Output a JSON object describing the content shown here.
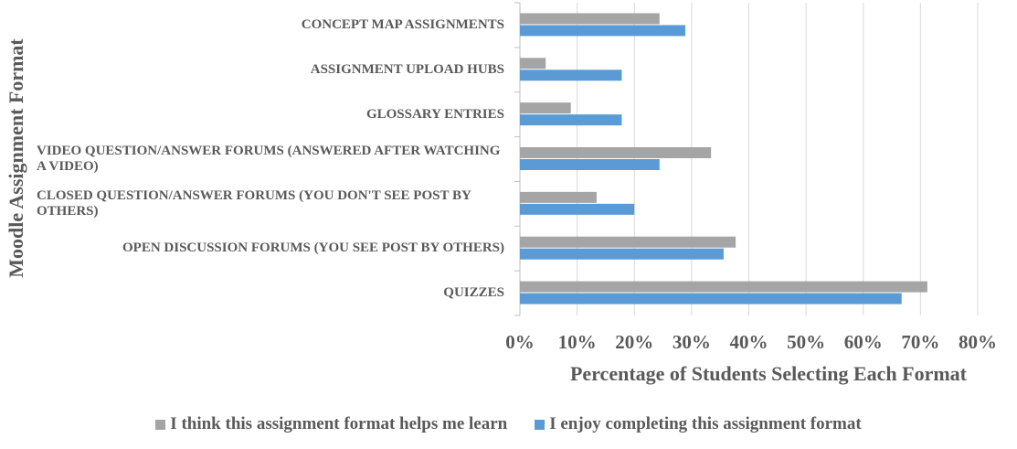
{
  "chart_data": {
    "type": "bar",
    "orientation": "horizontal",
    "x_label": "Percentage of Students Selecting Each Format",
    "y_label": "Moodle Assignment Format",
    "categories": [
      "CONCEPT MAP ASSIGNMENTS",
      "ASSIGNMENT UPLOAD HUBS",
      "GLOSSARY ENTRIES",
      "VIDEO QUESTION/ANSWER FORUMS (ANSWERED AFTER WATCHING A VIDEO)",
      "CLOSED QUESTION/ANSWER FORUMS (YOU DON'T SEE POST BY OTHERS)",
      "OPEN DISCUSSION FORUMS (YOU SEE POST BY OTHERS)",
      "QUIZZES"
    ],
    "series": [
      {
        "name": "I think this assignment format helps me learn",
        "color": "#a5a5a5",
        "values": [
          24.4,
          4.5,
          8.9,
          33.4,
          13.4,
          37.7,
          71.2
        ]
      },
      {
        "name": "I enjoy completing this assignment format",
        "color": "#5b9bd5",
        "values": [
          28.9,
          17.8,
          17.8,
          24.4,
          20.0,
          35.6,
          66.7
        ]
      }
    ],
    "xlim": [
      0,
      80
    ],
    "xticks": [
      {
        "value": 0,
        "label": "0%"
      },
      {
        "value": 10,
        "label": "10%"
      },
      {
        "value": 20,
        "label": "20%"
      },
      {
        "value": 30,
        "label": "30%"
      },
      {
        "value": 40,
        "label": "40%"
      },
      {
        "value": 50,
        "label": "50%"
      },
      {
        "value": 60,
        "label": "60%"
      },
      {
        "value": 70,
        "label": "70%"
      },
      {
        "value": 80,
        "label": "80%"
      }
    ],
    "grid": true,
    "legend": "bottom"
  }
}
